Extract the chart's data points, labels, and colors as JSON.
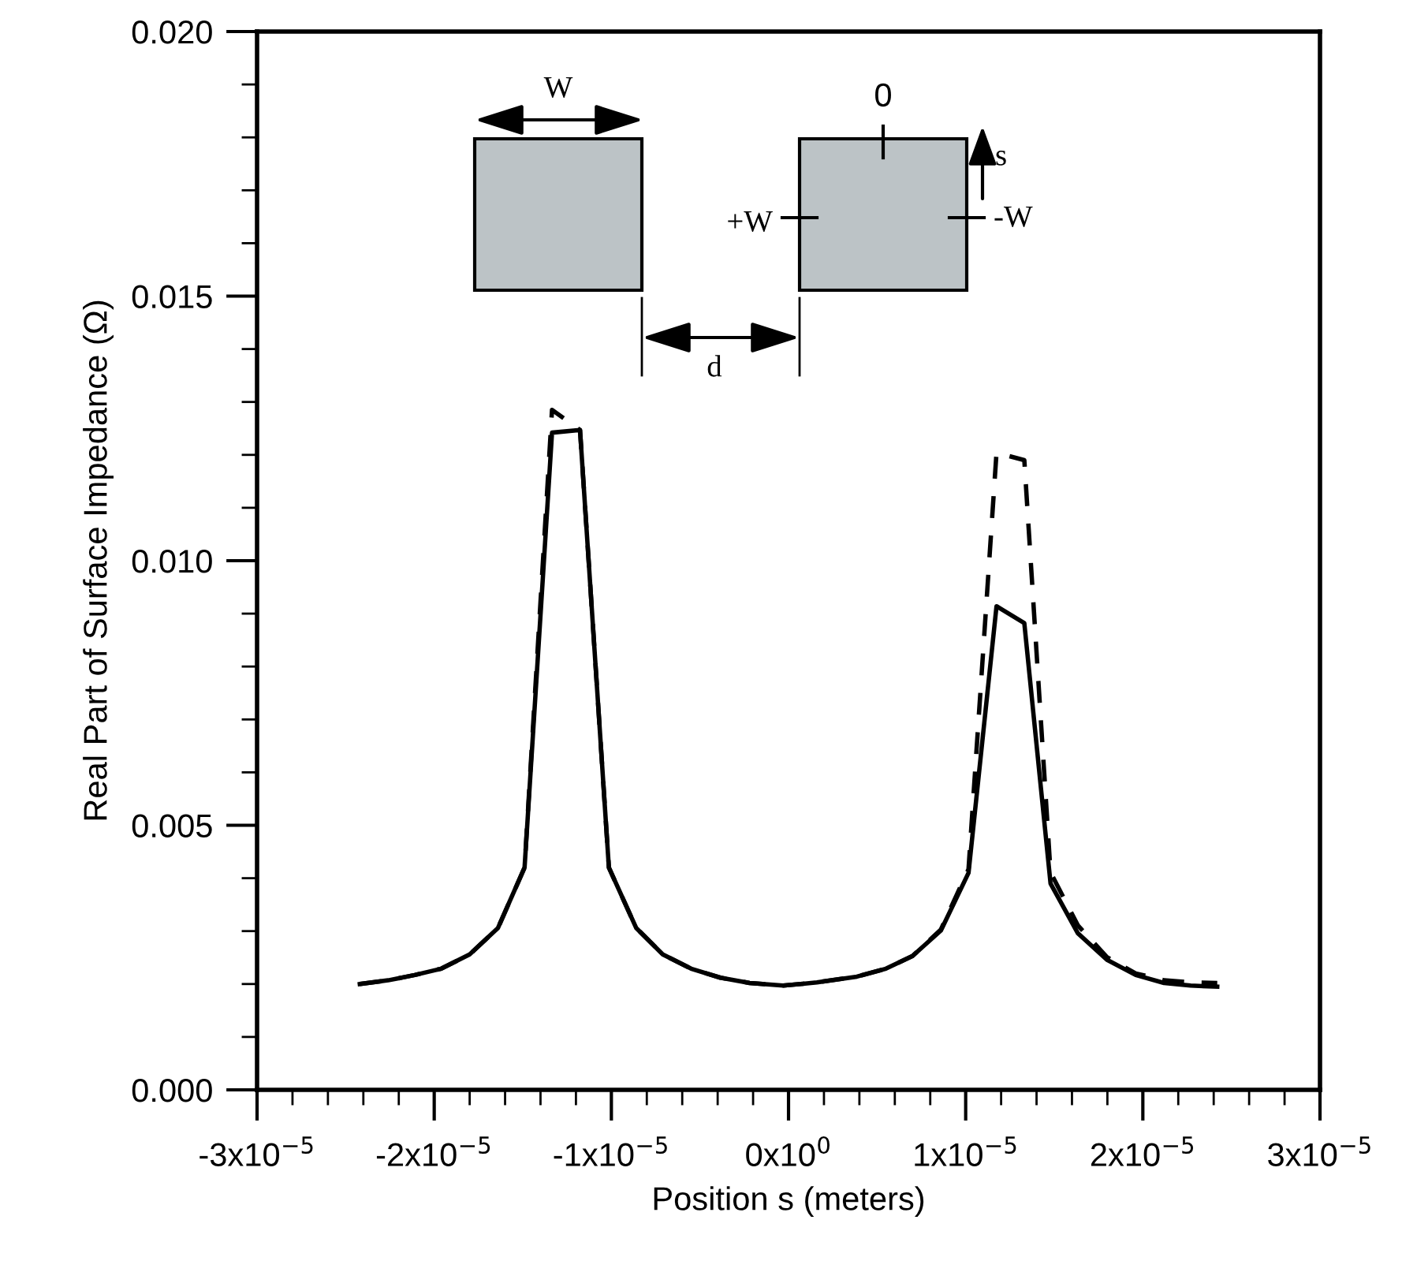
{
  "chart_data": {
    "type": "line",
    "xlabel": "Position s (meters)",
    "ylabel": "Real Part of Surface Impedance (Ω)",
    "xlim": [
      -3e-05,
      3e-05
    ],
    "ylim": [
      0.0,
      0.02
    ],
    "xticks": [
      {
        "value": -3e-05,
        "label": "-3x10$^{−5}$"
      },
      {
        "value": -2e-05,
        "label": "-2x10$^{−5}$"
      },
      {
        "value": -1e-05,
        "label": "-1x10$^{−5}$"
      },
      {
        "value": 0,
        "label": "0x10$^{0}$"
      },
      {
        "value": 1e-05,
        "label": "1x10$^{−5}$"
      },
      {
        "value": 2e-05,
        "label": "2x10$^{−5}$"
      },
      {
        "value": 3e-05,
        "label": "3x10$^{−5}$"
      }
    ],
    "yticks": [
      {
        "value": 0,
        "label": "0.000"
      },
      {
        "value": 0.005,
        "label": "0.005"
      },
      {
        "value": 0.01,
        "label": "0.010"
      },
      {
        "value": 0.015,
        "label": "0.015"
      },
      {
        "value": 0.02,
        "label": "0.020"
      }
    ],
    "grid": false,
    "legend": false,
    "series": [
      {
        "color": "#000000",
        "line_style": "solid",
        "x": [
          -2.42e-05,
          -2.26e-05,
          -2.11e-05,
          -1.96e-05,
          -1.8e-05,
          -1.64e-05,
          -1.49e-05,
          -1.335e-05,
          -1.177e-05,
          -1.014e-05,
          -8.6e-06,
          -7.1e-06,
          -5.5e-06,
          -3.85e-06,
          -2.2e-06,
          -3e-07,
          1.6e-06,
          3.86e-06,
          5.5e-06,
          7e-06,
          8.6e-06,
          1.016e-05,
          1.174e-05,
          1.331e-05,
          1.479e-05,
          1.633e-05,
          1.797e-05,
          1.96e-05,
          2.12e-05,
          2.27e-05,
          2.42e-05
        ],
        "values": [
          0.002,
          0.00207,
          0.00217,
          0.00229,
          0.00256,
          0.00306,
          0.0042,
          0.01242,
          0.01247,
          0.0042,
          0.00306,
          0.00256,
          0.00229,
          0.00212,
          0.00202,
          0.00197,
          0.00203,
          0.00214,
          0.00229,
          0.00253,
          0.00301,
          0.0041,
          0.00914,
          0.00882,
          0.0039,
          0.00296,
          0.00246,
          0.00217,
          0.00202,
          0.00197,
          0.00195
        ]
      },
      {
        "color": "#000000",
        "line_style": "dashed",
        "x": [
          -2.42e-05,
          -2.26e-05,
          -2.11e-05,
          -1.96e-05,
          -1.8e-05,
          -1.64e-05,
          -1.49e-05,
          -1.335e-05,
          -1.177e-05,
          -1.014e-05,
          -8.6e-06,
          -7.1e-06,
          -5.5e-06,
          -3.85e-06,
          -2.2e-06,
          -3e-07,
          1.6e-06,
          3.86e-06,
          5.5e-06,
          7e-06,
          8.6e-06,
          1.016e-05,
          1.174e-05,
          1.331e-05,
          1.479e-05,
          1.633e-05,
          1.797e-05,
          1.96e-05,
          2.12e-05,
          2.27e-05,
          2.42e-05
        ],
        "values": [
          0.002,
          0.00207,
          0.00217,
          0.00229,
          0.00256,
          0.00306,
          0.0042,
          0.01285,
          0.01247,
          0.0042,
          0.00306,
          0.00256,
          0.00229,
          0.00212,
          0.00202,
          0.00197,
          0.00203,
          0.00214,
          0.00229,
          0.00253,
          0.00303,
          0.00417,
          0.01204,
          0.0119,
          0.00411,
          0.00311,
          0.00251,
          0.0022,
          0.00207,
          0.00203,
          0.00202
        ]
      }
    ],
    "annotations": [
      "W",
      "0",
      "s",
      "+W",
      "-W",
      "d"
    ]
  }
}
